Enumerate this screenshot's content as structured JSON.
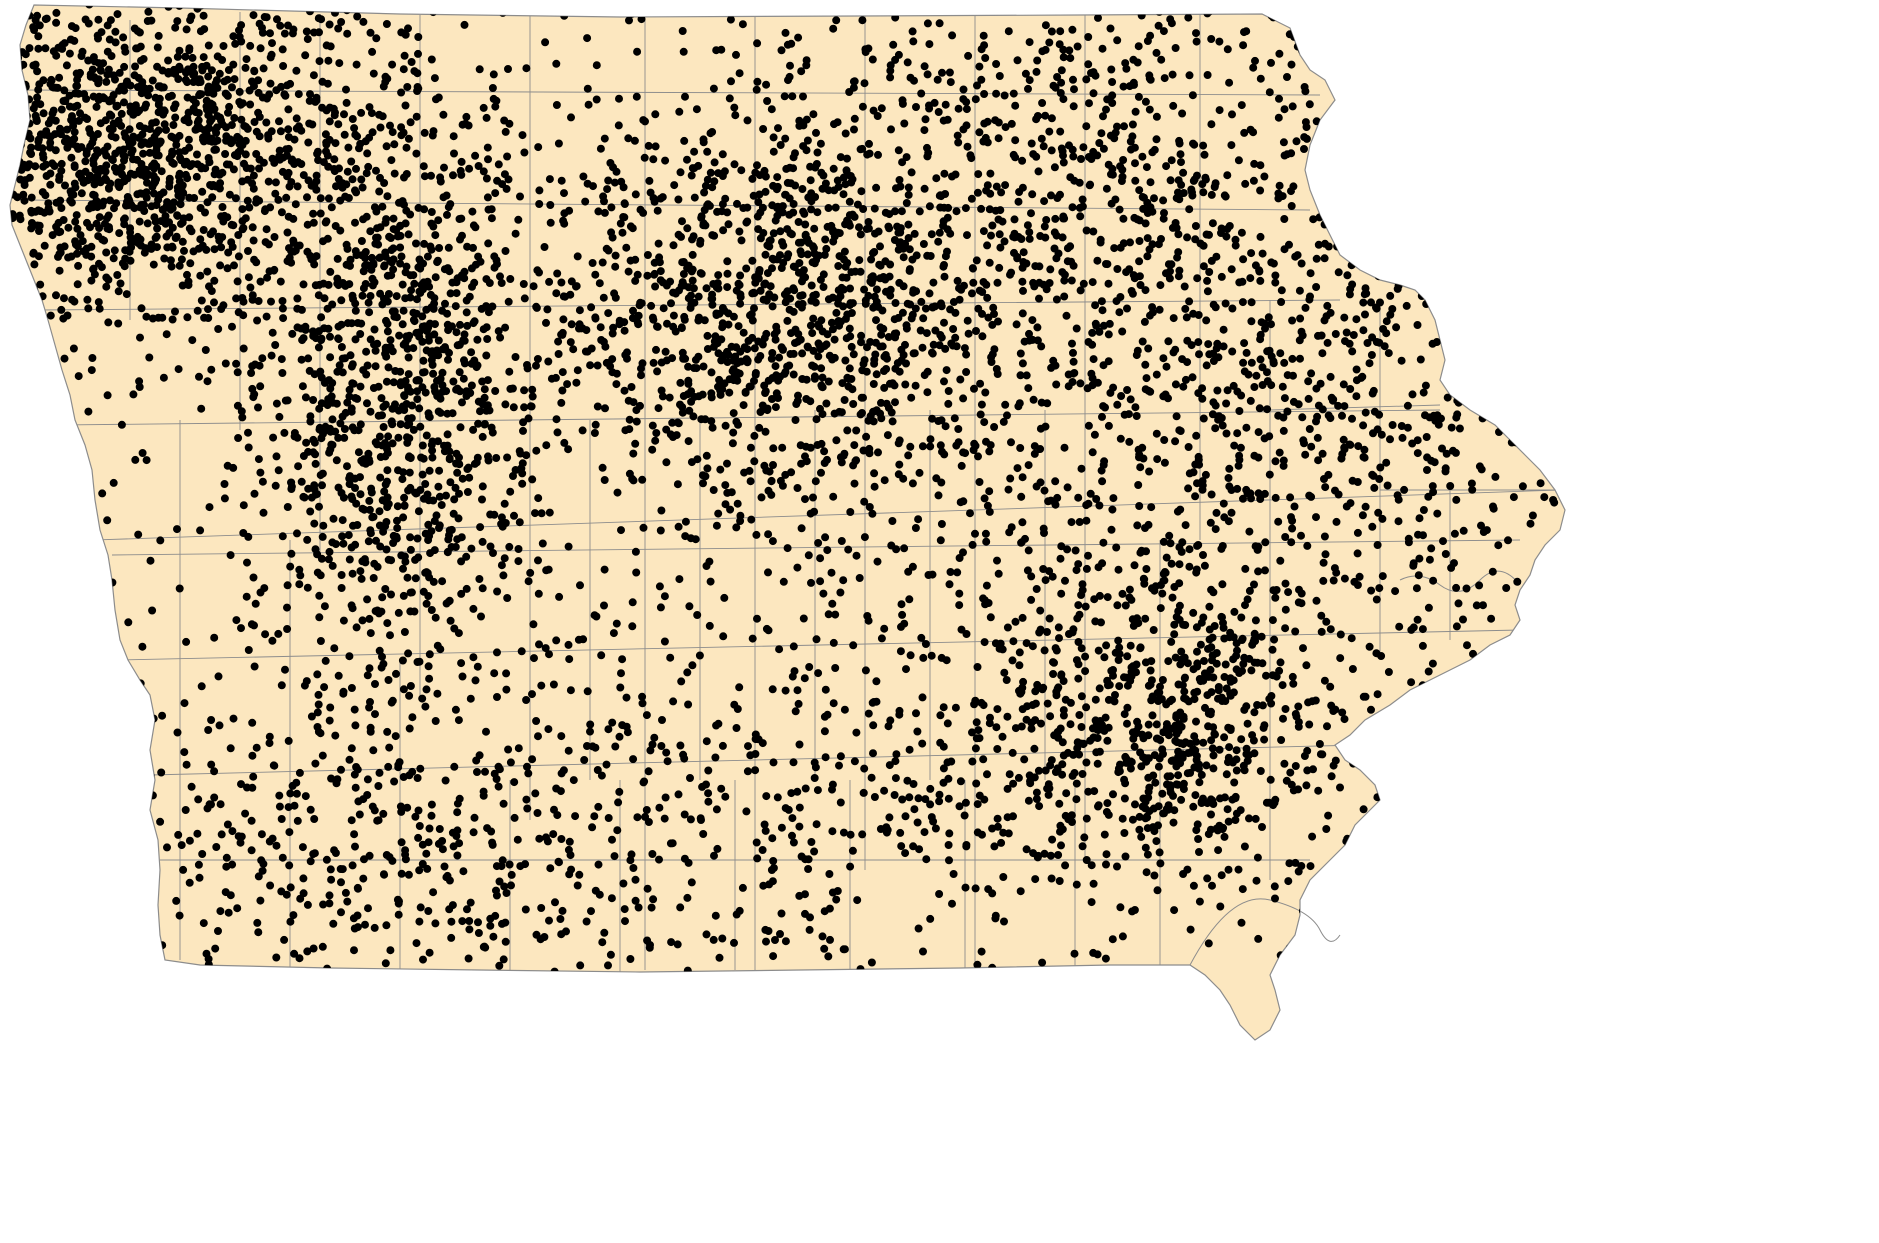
{
  "map": {
    "subject": "Iowa counties",
    "land_color": "#FCE7BF",
    "border_color": "#8C8C8C",
    "point_color": "#000000",
    "point_symbol": "dot",
    "background_color": "#FFFFFF"
  },
  "point_layer": {
    "seed": 1879,
    "clusters": [
      {
        "name": "northwest-dense",
        "weight": 1.0,
        "spread": "high",
        "count": 1400
      },
      {
        "name": "west-central-band",
        "weight": 0.85,
        "spread": "medium",
        "count": 1100
      },
      {
        "name": "north-central-ring",
        "weight": 0.8,
        "spread": "medium",
        "count": 950
      },
      {
        "name": "northeast",
        "weight": 0.7,
        "spread": "high",
        "count": 850
      },
      {
        "name": "east-central",
        "weight": 0.55,
        "spread": "high",
        "count": 650
      },
      {
        "name": "southeast-cluster",
        "weight": 0.65,
        "spread": "medium",
        "count": 550
      },
      {
        "name": "south-central",
        "weight": 0.45,
        "spread": "high",
        "count": 500
      },
      {
        "name": "southwest",
        "weight": 0.35,
        "spread": "high",
        "count": 450
      },
      {
        "name": "scattered",
        "weight": 0.3,
        "spread": "uniform",
        "count": 900
      }
    ]
  }
}
